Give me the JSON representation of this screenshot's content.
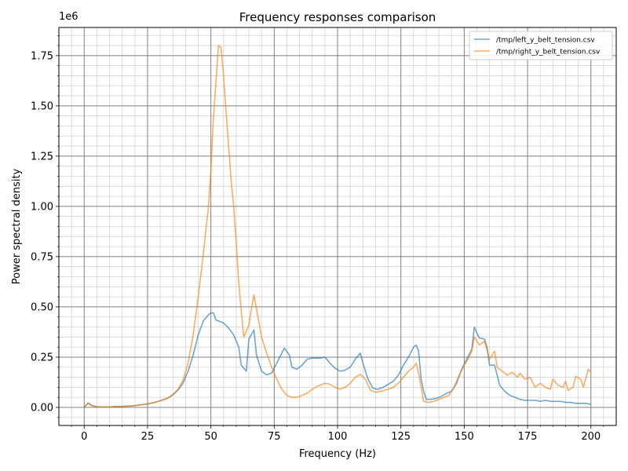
{
  "chart_data": {
    "type": "line",
    "title": "Frequency responses comparison",
    "xlabel": "Frequency (Hz)",
    "ylabel": "Power spectral density",
    "y_scale_label": "1e6",
    "y_multiplier": 1000000,
    "xlim": [
      -10,
      210
    ],
    "ylim": [
      -0.09,
      1.89
    ],
    "x_ticks": [
      0,
      25,
      50,
      75,
      100,
      125,
      150,
      175,
      200
    ],
    "x_tick_labels": [
      "0",
      "25",
      "50",
      "75",
      "100",
      "125",
      "150",
      "175",
      "200"
    ],
    "y_ticks": [
      0,
      0.25,
      0.5,
      0.75,
      1.0,
      1.25,
      1.5,
      1.75
    ],
    "y_tick_labels": [
      "0.00",
      "0.25",
      "0.50",
      "0.75",
      "1.00",
      "1.25",
      "1.50",
      "1.75"
    ],
    "grid": true,
    "legend_position": "top-right",
    "series": [
      {
        "name": "/tmp/left_y_belt_tension.csv",
        "color": "#1f77b4",
        "points": [
          [
            0,
            0.0
          ],
          [
            1.5,
            0.022
          ],
          [
            3,
            0.01
          ],
          [
            5,
            0.003
          ],
          [
            8,
            0.002
          ],
          [
            10,
            0.002
          ],
          [
            12,
            0.004
          ],
          [
            15,
            0.005
          ],
          [
            18,
            0.007
          ],
          [
            20,
            0.009
          ],
          [
            22,
            0.012
          ],
          [
            25,
            0.017
          ],
          [
            28,
            0.025
          ],
          [
            30,
            0.033
          ],
          [
            33,
            0.046
          ],
          [
            35,
            0.062
          ],
          [
            37,
            0.085
          ],
          [
            39,
            0.12
          ],
          [
            41,
            0.18
          ],
          [
            43,
            0.26
          ],
          [
            45,
            0.36
          ],
          [
            47,
            0.43
          ],
          [
            49,
            0.46
          ],
          [
            50,
            0.47
          ],
          [
            51,
            0.47
          ],
          [
            52,
            0.435
          ],
          [
            54,
            0.425
          ],
          [
            55,
            0.42
          ],
          [
            57,
            0.395
          ],
          [
            59,
            0.36
          ],
          [
            61,
            0.3
          ],
          [
            62,
            0.21
          ],
          [
            64,
            0.18
          ],
          [
            65,
            0.34
          ],
          [
            67,
            0.385
          ],
          [
            68,
            0.26
          ],
          [
            70,
            0.18
          ],
          [
            72,
            0.162
          ],
          [
            74,
            0.17
          ],
          [
            76,
            0.22
          ],
          [
            78,
            0.27
          ],
          [
            79,
            0.295
          ],
          [
            81,
            0.26
          ],
          [
            82,
            0.2
          ],
          [
            84,
            0.19
          ],
          [
            86,
            0.21
          ],
          [
            88,
            0.24
          ],
          [
            90,
            0.245
          ],
          [
            93,
            0.245
          ],
          [
            95,
            0.25
          ],
          [
            97,
            0.22
          ],
          [
            99,
            0.195
          ],
          [
            101,
            0.18
          ],
          [
            103,
            0.185
          ],
          [
            105,
            0.2
          ],
          [
            107,
            0.24
          ],
          [
            109,
            0.27
          ],
          [
            110,
            0.22
          ],
          [
            112,
            0.14
          ],
          [
            114,
            0.095
          ],
          [
            116,
            0.09
          ],
          [
            118,
            0.1
          ],
          [
            120,
            0.115
          ],
          [
            122,
            0.13
          ],
          [
            124,
            0.16
          ],
          [
            126,
            0.21
          ],
          [
            128,
            0.25
          ],
          [
            130,
            0.3
          ],
          [
            131,
            0.31
          ],
          [
            132,
            0.28
          ],
          [
            133,
            0.14
          ],
          [
            134,
            0.08
          ],
          [
            135,
            0.04
          ],
          [
            137,
            0.04
          ],
          [
            139,
            0.045
          ],
          [
            141,
            0.055
          ],
          [
            143,
            0.07
          ],
          [
            145,
            0.08
          ],
          [
            147,
            0.12
          ],
          [
            149,
            0.19
          ],
          [
            151,
            0.24
          ],
          [
            153,
            0.29
          ],
          [
            154,
            0.4
          ],
          [
            155,
            0.37
          ],
          [
            156,
            0.345
          ],
          [
            158,
            0.34
          ],
          [
            159,
            0.3
          ],
          [
            160,
            0.21
          ],
          [
            162,
            0.21
          ],
          [
            164,
            0.11
          ],
          [
            166,
            0.08
          ],
          [
            168,
            0.06
          ],
          [
            170,
            0.05
          ],
          [
            172,
            0.04
          ],
          [
            174,
            0.035
          ],
          [
            176,
            0.035
          ],
          [
            178,
            0.035
          ],
          [
            180,
            0.03
          ],
          [
            182,
            0.035
          ],
          [
            184,
            0.03
          ],
          [
            186,
            0.03
          ],
          [
            188,
            0.03
          ],
          [
            190,
            0.025
          ],
          [
            192,
            0.025
          ],
          [
            194,
            0.02
          ],
          [
            196,
            0.02
          ],
          [
            198,
            0.02
          ],
          [
            200,
            0.015
          ]
        ]
      },
      {
        "name": "/tmp/right_y_belt_tension.csv",
        "color": "#ff7f0e",
        "points": [
          [
            0,
            0.0
          ],
          [
            1.5,
            0.02
          ],
          [
            3,
            0.008
          ],
          [
            5,
            0.003
          ],
          [
            8,
            0.002
          ],
          [
            10,
            0.002
          ],
          [
            12,
            0.004
          ],
          [
            15,
            0.005
          ],
          [
            18,
            0.007
          ],
          [
            20,
            0.009
          ],
          [
            22,
            0.012
          ],
          [
            25,
            0.017
          ],
          [
            28,
            0.025
          ],
          [
            30,
            0.033
          ],
          [
            33,
            0.046
          ],
          [
            35,
            0.065
          ],
          [
            37,
            0.09
          ],
          [
            39,
            0.135
          ],
          [
            41,
            0.22
          ],
          [
            43,
            0.36
          ],
          [
            45,
            0.55
          ],
          [
            47,
            0.76
          ],
          [
            48,
            0.88
          ],
          [
            49,
            0.99
          ],
          [
            50,
            1.18
          ],
          [
            51,
            1.44
          ],
          [
            52,
            1.62
          ],
          [
            53,
            1.8
          ],
          [
            54,
            1.79
          ],
          [
            55,
            1.65
          ],
          [
            56,
            1.47
          ],
          [
            57,
            1.3
          ],
          [
            58,
            1.13
          ],
          [
            59,
            1.0
          ],
          [
            60,
            0.82
          ],
          [
            61,
            0.62
          ],
          [
            62,
            0.48
          ],
          [
            63,
            0.35
          ],
          [
            65,
            0.41
          ],
          [
            66,
            0.49
          ],
          [
            67,
            0.56
          ],
          [
            68,
            0.49
          ],
          [
            70,
            0.35
          ],
          [
            72,
            0.27
          ],
          [
            74,
            0.2
          ],
          [
            76,
            0.14
          ],
          [
            78,
            0.09
          ],
          [
            80,
            0.06
          ],
          [
            82,
            0.05
          ],
          [
            84,
            0.05
          ],
          [
            86,
            0.06
          ],
          [
            88,
            0.07
          ],
          [
            90,
            0.09
          ],
          [
            92,
            0.105
          ],
          [
            94,
            0.115
          ],
          [
            95,
            0.12
          ],
          [
            97,
            0.115
          ],
          [
            99,
            0.1
          ],
          [
            101,
            0.09
          ],
          [
            103,
            0.1
          ],
          [
            105,
            0.12
          ],
          [
            107,
            0.15
          ],
          [
            109,
            0.165
          ],
          [
            111,
            0.14
          ],
          [
            113,
            0.085
          ],
          [
            115,
            0.075
          ],
          [
            117,
            0.08
          ],
          [
            120,
            0.09
          ],
          [
            122,
            0.1
          ],
          [
            124,
            0.12
          ],
          [
            126,
            0.15
          ],
          [
            128,
            0.18
          ],
          [
            130,
            0.2
          ],
          [
            131,
            0.22
          ],
          [
            132,
            0.17
          ],
          [
            134,
            0.03
          ],
          [
            136,
            0.025
          ],
          [
            138,
            0.03
          ],
          [
            140,
            0.04
          ],
          [
            142,
            0.05
          ],
          [
            144,
            0.06
          ],
          [
            146,
            0.1
          ],
          [
            148,
            0.16
          ],
          [
            150,
            0.21
          ],
          [
            152,
            0.25
          ],
          [
            153,
            0.28
          ],
          [
            154,
            0.35
          ],
          [
            156,
            0.31
          ],
          [
            158,
            0.33
          ],
          [
            160,
            0.24
          ],
          [
            162,
            0.28
          ],
          [
            163,
            0.2
          ],
          [
            165,
            0.18
          ],
          [
            167,
            0.16
          ],
          [
            169,
            0.175
          ],
          [
            171,
            0.15
          ],
          [
            172,
            0.17
          ],
          [
            174,
            0.14
          ],
          [
            176,
            0.15
          ],
          [
            178,
            0.1
          ],
          [
            180,
            0.12
          ],
          [
            182,
            0.1
          ],
          [
            184,
            0.09
          ],
          [
            185,
            0.14
          ],
          [
            187,
            0.11
          ],
          [
            189,
            0.1
          ],
          [
            190,
            0.13
          ],
          [
            191,
            0.085
          ],
          [
            193,
            0.1
          ],
          [
            194,
            0.155
          ],
          [
            196,
            0.14
          ],
          [
            197,
            0.1
          ],
          [
            199,
            0.19
          ],
          [
            200,
            0.175
          ]
        ]
      }
    ]
  }
}
